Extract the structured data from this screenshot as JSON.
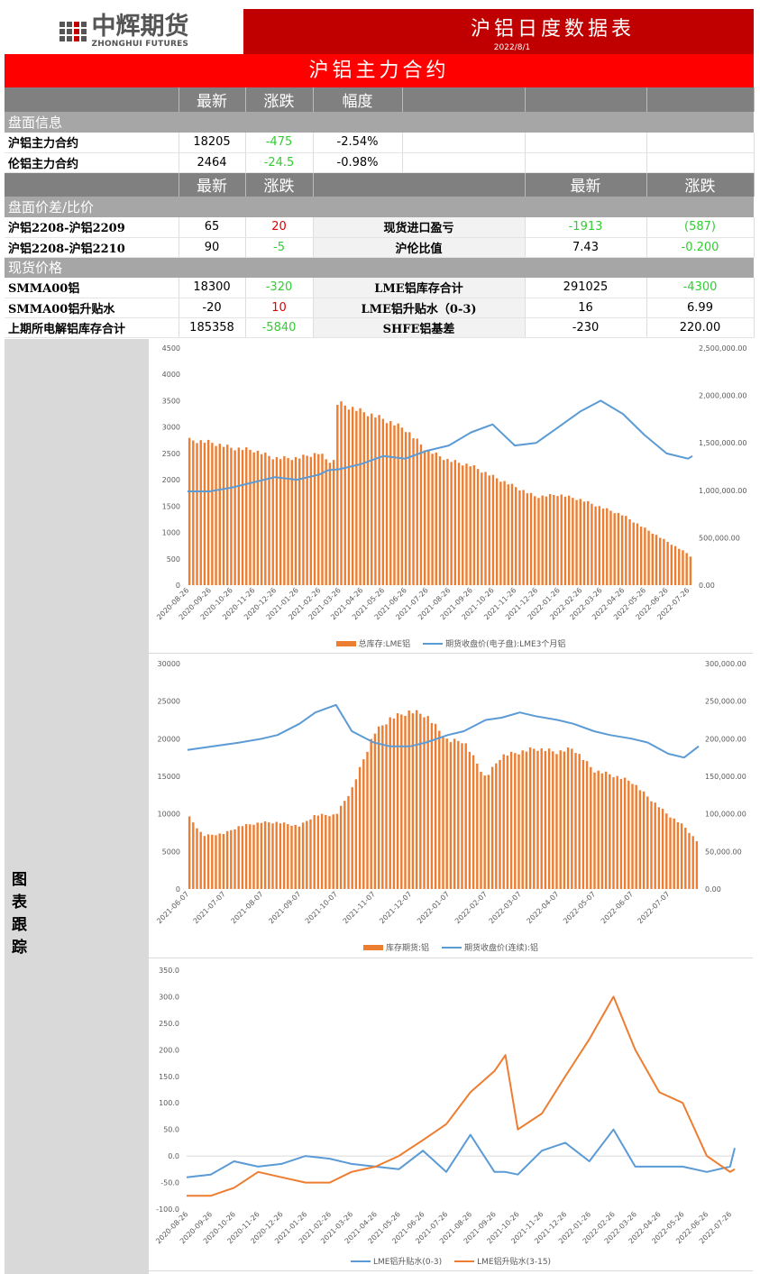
{
  "logo": {
    "cn": "中辉期货",
    "en": "ZHONGHUI FUTURES"
  },
  "header": {
    "title": "沪铝日度数据表",
    "date": "2022/8/1",
    "banner": "沪铝主力合约"
  },
  "table": {
    "hdr1": [
      "最新",
      "涨跌",
      "幅度"
    ],
    "sec1": "盘面信息",
    "rows1": [
      {
        "label": "沪铝主力合约",
        "latest": "18205",
        "change": "-475",
        "pct": "-2.54%"
      },
      {
        "label": "伦铝主力合约",
        "latest": "2464",
        "change": "-24.5",
        "pct": "-0.98%"
      }
    ],
    "hdr2": [
      "最新",
      "涨跌",
      "最新",
      "涨跌"
    ],
    "sec2": "盘面价差/比价",
    "rows2": [
      {
        "label": "沪铝2208-沪铝2209",
        "latest": "65",
        "change": "20",
        "name2": "现货进口盈亏",
        "latest2": "-1913",
        "change2": "(587)"
      },
      {
        "label": "沪铝2208-沪铝2210",
        "latest": "90",
        "change": "-5",
        "name2": "沪伦比值",
        "latest2": "7.43",
        "change2": "-0.200"
      }
    ],
    "sec3": "现货价格",
    "rows3": [
      {
        "label": "SMMA00铝",
        "latest": "18300",
        "change": "-320",
        "name2": "LME铝库存合计",
        "latest2": "291025",
        "change2": "-4300"
      },
      {
        "label": "SMMA00铝升贴水",
        "latest": "-20",
        "change": "10",
        "name2": "LME铝升贴水（0-3)",
        "latest2": "16",
        "change2": "6.99"
      },
      {
        "label": "上期所电解铝库存合计",
        "latest": "185358",
        "change": "-5840",
        "name2": "SHFE铝基差",
        "latest2": "-230",
        "change2": "220.00"
      }
    ]
  },
  "side_label": "图表跟踪",
  "colors": {
    "bar": "#ed7d31",
    "line": "#5b9bd5",
    "up": "#e00000",
    "down": "#33cc33"
  },
  "chart_data": [
    {
      "type": "bar+line",
      "x": [
        "2020-08-26",
        "2020-09-26",
        "2020-10-26",
        "2020-11-26",
        "2020-12-26",
        "2021-01-26",
        "2021-02-26",
        "2021-03-10",
        "2021-03-26",
        "2021-04-26",
        "2021-05-26",
        "2021-06-26",
        "2021-07-26",
        "2021-08-26",
        "2021-09-26",
        "2021-10-26",
        "2021-11-26",
        "2021-12-26",
        "2022-01-26",
        "2022-02-26",
        "2022-03-26",
        "2022-04-26",
        "2022-05-26",
        "2022-06-26",
        "2022-07-26",
        "2022-08-01"
      ],
      "xticks": [
        "2020-08-26",
        "2020-09-26",
        "2020-10-26",
        "2020-11-26",
        "2020-12-26",
        "2021-01-26",
        "2021-02-26",
        "2021-03-26",
        "2021-04-26",
        "2021-05-26",
        "2021-06-26",
        "2021-07-26",
        "2021-08-26",
        "2021-09-26",
        "2021-10-26",
        "2021-11-26",
        "2021-12-26",
        "2022-01-26",
        "2022-02-26",
        "2022-03-26",
        "2022-04-26",
        "2022-05-26",
        "2022-06-26",
        "2022-07-26"
      ],
      "series": [
        {
          "name": "总库存:LME铝",
          "kind": "bar",
          "axis": "right",
          "values": [
            1555000,
            1530000,
            1470000,
            1445000,
            1360000,
            1360000,
            1415000,
            1330000,
            1945000,
            1860000,
            1780000,
            1670000,
            1445000,
            1335000,
            1280000,
            1165000,
            1055000,
            945000,
            970000,
            915000,
            835000,
            750000,
            610000,
            470000,
            335000,
            291025
          ]
        },
        {
          "name": "期货收盘价(电子盘):LME3个月铝",
          "kind": "line",
          "axis": "left",
          "values": [
            1780,
            1780,
            1850,
            1950,
            2050,
            2000,
            2100,
            2180,
            2200,
            2300,
            2450,
            2400,
            2550,
            2650,
            2900,
            3050,
            2650,
            2700,
            3000,
            3300,
            3500,
            3250,
            2850,
            2500,
            2400,
            2450
          ]
        }
      ],
      "yleft": {
        "min": 0,
        "max": 4500,
        "step": 500,
        "ticks": [
          "0",
          "500",
          "1000",
          "1500",
          "2000",
          "2500",
          "3000",
          "3500",
          "4000",
          "4500"
        ]
      },
      "yright": {
        "min": 0,
        "max": 2500000,
        "step": 500000,
        "ticks": [
          "0.00",
          "500,000.00",
          "1,000,000.00",
          "1,500,000.00",
          "2,000,000.00",
          "2,500,000.00"
        ]
      }
    },
    {
      "type": "bar+line",
      "x": [
        "2021-06-07",
        "2021-06-20",
        "2021-07-07",
        "2021-07-20",
        "2021-08-07",
        "2021-08-20",
        "2021-09-07",
        "2021-09-20",
        "2021-10-07",
        "2021-10-20",
        "2021-11-07",
        "2021-11-20",
        "2021-12-07",
        "2021-12-20",
        "2022-01-07",
        "2022-01-20",
        "2022-02-07",
        "2022-02-20",
        "2022-03-07",
        "2022-03-20",
        "2022-04-07",
        "2022-04-20",
        "2022-05-07",
        "2022-05-20",
        "2022-06-07",
        "2022-06-20",
        "2022-07-07",
        "2022-07-20",
        "2022-08-01"
      ],
      "xticks": [
        "2021-06-07",
        "2021-07-07",
        "2021-08-07",
        "2021-09-07",
        "2021-10-07",
        "2021-11-07",
        "2021-12-07",
        "2022-01-07",
        "2022-02-07",
        "2022-03-07",
        "2022-04-07",
        "2022-05-07",
        "2022-06-07",
        "2022-07-07"
      ],
      "series": [
        {
          "name": "库存期货:铝",
          "kind": "bar",
          "axis": "right",
          "values": [
            100000,
            72000,
            75000,
            85000,
            90000,
            90000,
            85000,
            100000,
            100000,
            135000,
            210000,
            230000,
            240000,
            235000,
            200000,
            200000,
            150000,
            180000,
            185000,
            190000,
            185000,
            190000,
            160000,
            155000,
            145000,
            125000,
            100000,
            85000,
            62000
          ]
        },
        {
          "name": "期货收盘价(连续):铝",
          "kind": "line",
          "axis": "left",
          "values": [
            18500,
            18800,
            19200,
            19500,
            20000,
            20500,
            22000,
            23500,
            24500,
            21000,
            19500,
            19000,
            19000,
            19500,
            20500,
            21000,
            22500,
            22800,
            23500,
            23000,
            22500,
            22000,
            21000,
            20500,
            20000,
            19500,
            18000,
            17500,
            19000
          ]
        }
      ],
      "yleft": {
        "min": 0,
        "max": 30000,
        "step": 5000,
        "ticks": [
          "0",
          "5000",
          "10000",
          "15000",
          "20000",
          "25000",
          "30000"
        ]
      },
      "yright": {
        "min": 0,
        "max": 300000,
        "step": 50000,
        "ticks": [
          "0.00",
          "50,000.00",
          "100,000.00",
          "150,000.00",
          "200,000.00",
          "250,000.00",
          "300,000.00"
        ]
      }
    },
    {
      "type": "line",
      "x": [
        "2020-08-26",
        "2020-09-26",
        "2020-10-26",
        "2020-11-26",
        "2020-12-26",
        "2021-01-26",
        "2021-02-26",
        "2021-03-26",
        "2021-04-26",
        "2021-05-26",
        "2021-06-26",
        "2021-07-26",
        "2021-08-26",
        "2021-09-26",
        "2021-10-10",
        "2021-10-26",
        "2021-11-26",
        "2021-12-26",
        "2022-01-26",
        "2022-02-26",
        "2022-03-26",
        "2022-04-26",
        "2022-05-26",
        "2022-06-26",
        "2022-07-26",
        "2022-08-01"
      ],
      "xticks": [
        "2020-08-26",
        "2020-09-26",
        "2020-10-26",
        "2020-11-26",
        "2020-12-26",
        "2021-01-26",
        "2021-02-26",
        "2021-03-26",
        "2021-04-26",
        "2021-05-26",
        "2021-06-26",
        "2021-07-26",
        "2021-08-26",
        "2021-09-26",
        "2021-10-26",
        "2021-11-26",
        "2021-12-26",
        "2022-01-26",
        "2022-02-26",
        "2022-03-26",
        "2022-04-26",
        "2022-05-26",
        "2022-06-26",
        "2022-07-26"
      ],
      "series": [
        {
          "name": "LME铝升贴水(0-3)",
          "kind": "line",
          "axis": "left",
          "color": "#5b9bd5",
          "values": [
            -40,
            -35,
            -10,
            -20,
            -15,
            0,
            -5,
            -15,
            -20,
            -25,
            10,
            -30,
            40,
            -30,
            -30,
            -35,
            10,
            25,
            -10,
            50,
            -20,
            -20,
            -20,
            -30,
            -20,
            15
          ]
        },
        {
          "name": "LME铝升贴水(3-15)",
          "kind": "line",
          "axis": "left",
          "color": "#ed7d31",
          "values": [
            -75,
            -75,
            -60,
            -30,
            -40,
            -50,
            -50,
            -30,
            -20,
            0,
            30,
            60,
            120,
            160,
            190,
            50,
            80,
            150,
            220,
            300,
            200,
            120,
            100,
            0,
            -30,
            -25
          ]
        }
      ],
      "yleft": {
        "min": -100,
        "max": 350,
        "step": 50,
        "ticks": [
          "-100.0",
          "-50.0",
          "0.0",
          "50.0",
          "100.0",
          "150.0",
          "200.0",
          "250.0",
          "300.0",
          "350.0"
        ]
      }
    }
  ]
}
